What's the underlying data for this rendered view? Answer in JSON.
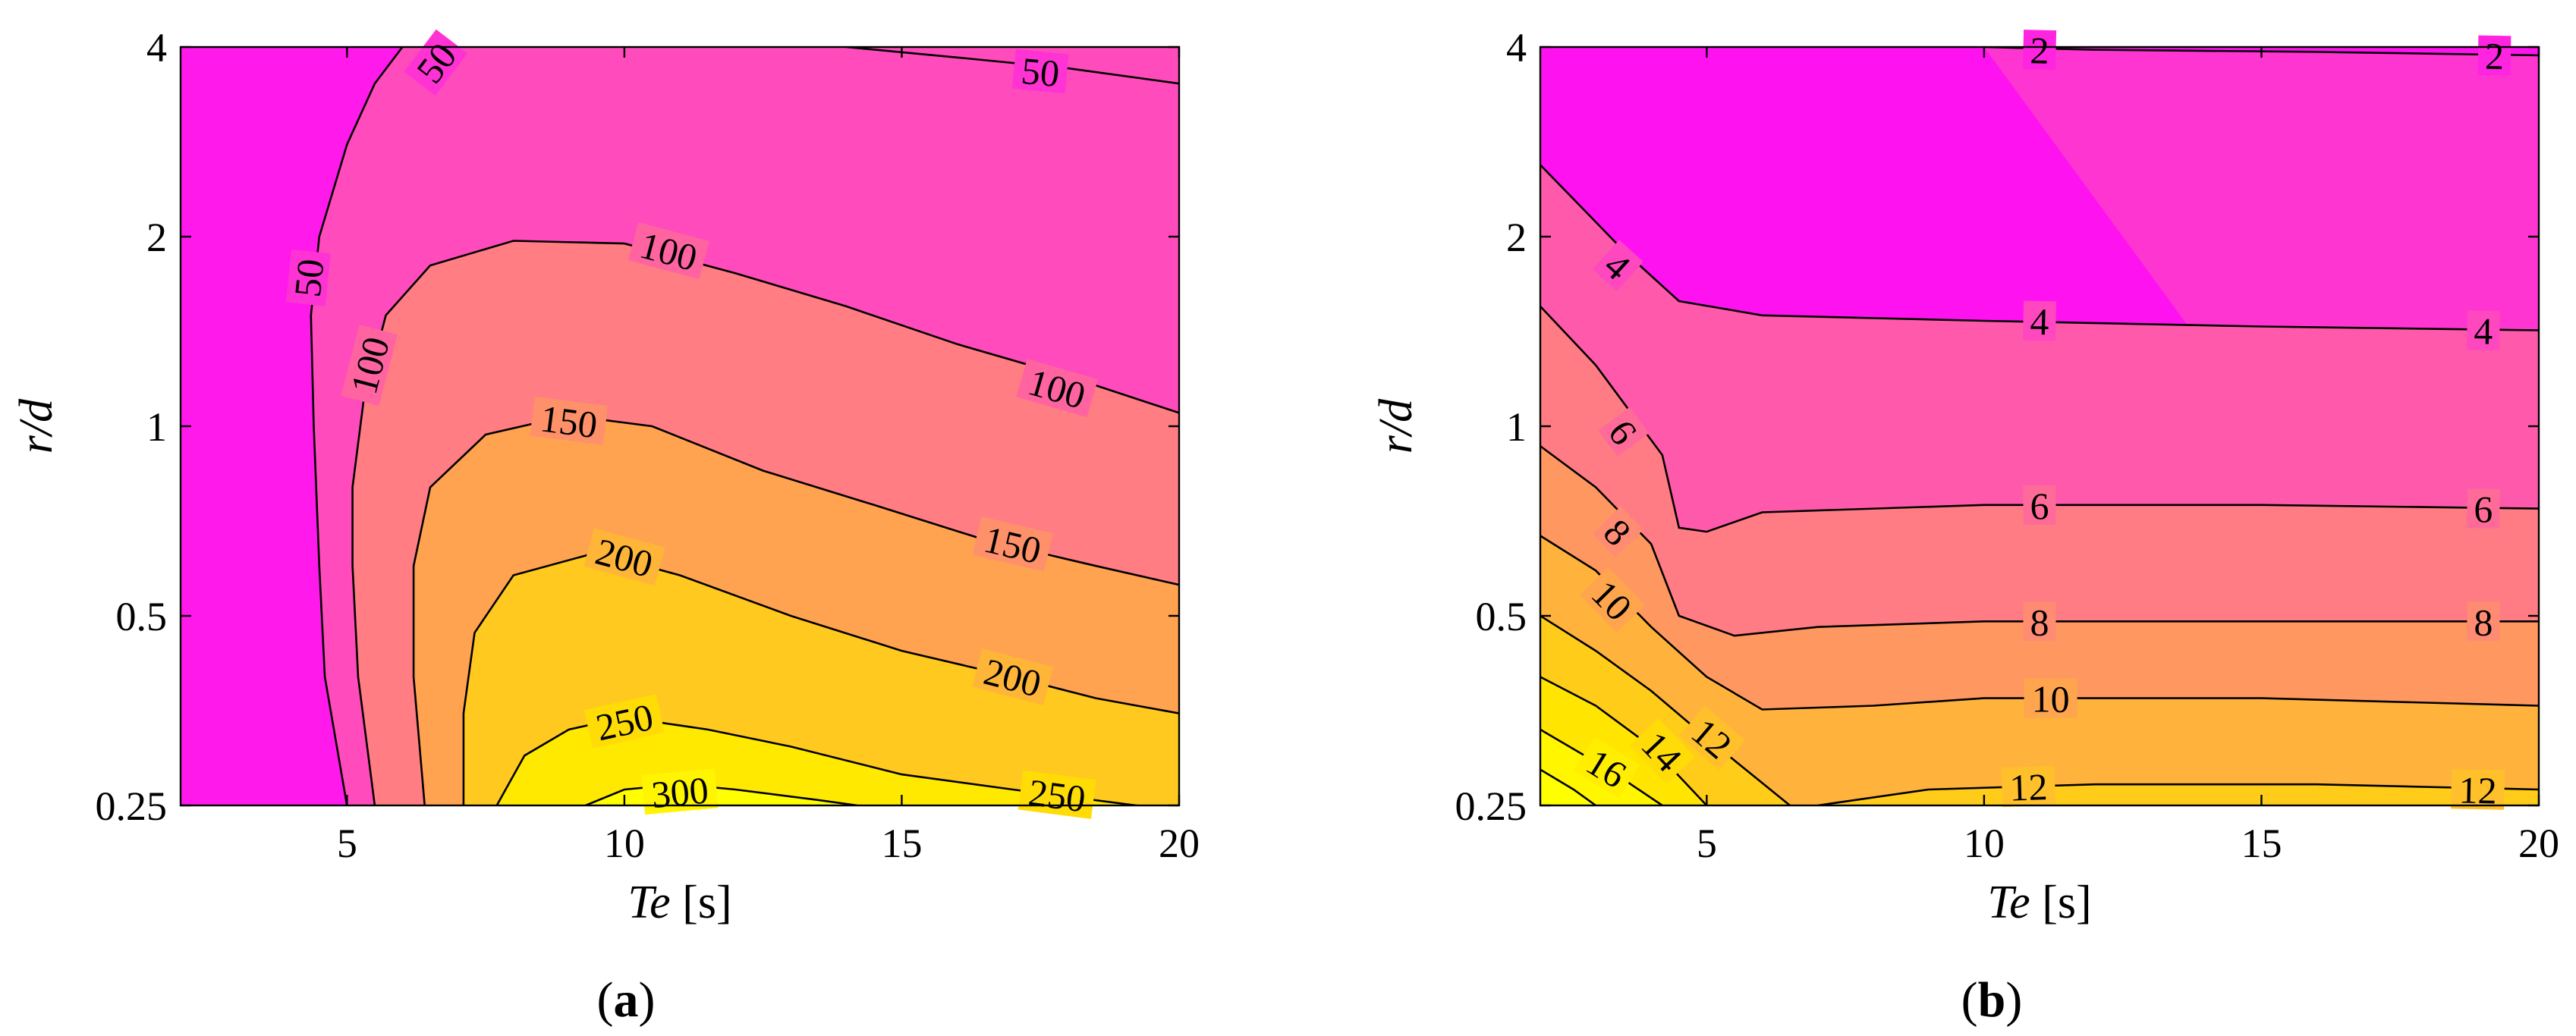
{
  "figure": {
    "panel_labels": [
      {
        "open": "(",
        "letter": "a",
        "close": ")"
      },
      {
        "open": "(",
        "letter": "b",
        "close": ")"
      }
    ]
  },
  "colors": {
    "colormap": [
      "#ff00ff",
      "#ff40c8",
      "#ff8080",
      "#ffb040",
      "#ffe000",
      "#ffff00"
    ],
    "contour_line": "#000000",
    "axis": "#000000"
  },
  "chart_data": [
    {
      "type": "heatmap",
      "subtype": "filled-contour",
      "title": "",
      "xlabel": {
        "italic": "Te",
        "unit": " [s]"
      },
      "ylabel": {
        "italic": "r/d",
        "unit": ""
      },
      "xlim": [
        2,
        20
      ],
      "ylim": [
        0.25,
        4
      ],
      "yscale": "log2",
      "xticks": [
        5,
        10,
        15,
        20
      ],
      "yticks": [
        0.25,
        0.5,
        1,
        2,
        4
      ],
      "ytick_labels": [
        "0.25",
        "0.5",
        "1",
        "2",
        "4"
      ],
      "grid": false,
      "value_range": [
        0,
        320
      ],
      "levels": [
        {
          "value": 50,
          "label": "50",
          "points": [
            [
              5.0,
              0.25
            ],
            [
              4.6,
              0.4
            ],
            [
              4.5,
              0.6
            ],
            [
              4.4,
              1.0
            ],
            [
              4.35,
              1.5
            ],
            [
              4.5,
              2.0
            ],
            [
              5.0,
              2.8
            ],
            [
              5.5,
              3.5
            ],
            [
              6.0,
              4.0
            ]
          ],
          "labels_at": [
            [
              4.3,
              1.72
            ],
            [
              6.6,
              3.78
            ]
          ]
        },
        {
          "value": 50,
          "label": "50",
          "points": [
            [
              14.0,
              4.0
            ],
            [
              16.0,
              3.85
            ],
            [
              18.0,
              3.7
            ],
            [
              20.0,
              3.5
            ]
          ],
          "labels_at": [
            [
              17.5,
              3.66
            ]
          ]
        },
        {
          "value": 100,
          "label": "100",
          "points": [
            [
              5.5,
              0.25
            ],
            [
              5.2,
              0.4
            ],
            [
              5.1,
              0.6
            ],
            [
              5.1,
              0.8
            ],
            [
              5.3,
              1.1
            ],
            [
              5.7,
              1.5
            ],
            [
              6.5,
              1.8
            ],
            [
              8.0,
              1.97
            ],
            [
              10.0,
              1.95
            ],
            [
              12.0,
              1.75
            ],
            [
              14.0,
              1.55
            ],
            [
              16.0,
              1.35
            ],
            [
              18.0,
              1.2
            ],
            [
              20.0,
              1.05
            ]
          ],
          "labels_at": [
            [
              5.4,
              1.25
            ],
            [
              10.8,
              1.9
            ],
            [
              17.8,
              1.15
            ]
          ]
        },
        {
          "value": 150,
          "label": "150",
          "points": [
            [
              6.4,
              0.25
            ],
            [
              6.2,
              0.4
            ],
            [
              6.2,
              0.6
            ],
            [
              6.5,
              0.8
            ],
            [
              7.5,
              0.97
            ],
            [
              9.0,
              1.04
            ],
            [
              10.5,
              1.0
            ],
            [
              12.5,
              0.85
            ],
            [
              14.5,
              0.75
            ],
            [
              16.5,
              0.66
            ],
            [
              18.5,
              0.6
            ],
            [
              20.0,
              0.56
            ]
          ],
          "labels_at": [
            [
              9.0,
              1.02
            ],
            [
              17.0,
              0.65
            ]
          ]
        },
        {
          "value": 200,
          "label": "200",
          "points": [
            [
              7.1,
              0.25
            ],
            [
              7.1,
              0.35
            ],
            [
              7.3,
              0.47
            ],
            [
              8.0,
              0.58
            ],
            [
              9.5,
              0.63
            ],
            [
              11.0,
              0.58
            ],
            [
              13.0,
              0.5
            ],
            [
              15.0,
              0.44
            ],
            [
              17.0,
              0.4
            ],
            [
              18.5,
              0.37
            ],
            [
              20.0,
              0.35
            ]
          ],
          "labels_at": [
            [
              10.0,
              0.62
            ],
            [
              17.0,
              0.4
            ]
          ]
        },
        {
          "value": 250,
          "label": "250",
          "points": [
            [
              7.7,
              0.25
            ],
            [
              8.2,
              0.3
            ],
            [
              9.0,
              0.33
            ],
            [
              10.0,
              0.345
            ],
            [
              11.5,
              0.33
            ],
            [
              13.0,
              0.31
            ],
            [
              15.0,
              0.28
            ],
            [
              17.0,
              0.265
            ],
            [
              20.0,
              0.245
            ]
          ],
          "labels_at": [
            [
              10.0,
              0.34
            ],
            [
              17.8,
              0.26
            ]
          ]
        },
        {
          "value": 300,
          "label": "300",
          "points": [
            [
              9.3,
              0.25
            ],
            [
              10.0,
              0.265
            ],
            [
              11.0,
              0.27
            ],
            [
              12.0,
              0.265
            ],
            [
              13.5,
              0.255
            ],
            [
              14.2,
              0.25
            ]
          ],
          "labels_at": [
            [
              11.0,
              0.263
            ]
          ]
        }
      ]
    },
    {
      "type": "heatmap",
      "subtype": "filled-contour",
      "title": "",
      "xlabel": {
        "italic": "Te",
        "unit": " [s]"
      },
      "ylabel": {
        "italic": "r/d",
        "unit": ""
      },
      "xlim": [
        2,
        20
      ],
      "ylim": [
        0.25,
        4
      ],
      "yscale": "log2",
      "xticks": [
        5,
        10,
        15,
        20
      ],
      "yticks": [
        0.25,
        0.5,
        1,
        2,
        4
      ],
      "ytick_labels": [
        "0.25",
        "0.5",
        "1",
        "2",
        "4"
      ],
      "grid": false,
      "value_range": [
        0,
        18
      ],
      "levels": [
        {
          "value": 2,
          "label": "2",
          "points": [
            [
              10.0,
              4.0
            ],
            [
              12.0,
              3.96
            ],
            [
              16.0,
              3.93
            ],
            [
              20.0,
              3.88
            ]
          ],
          "labels_at": [
            [
              11.0,
              3.96
            ],
            [
              19.2,
              3.88
            ]
          ]
        },
        {
          "value": 4,
          "label": "4",
          "points": [
            [
              2.0,
              2.6
            ],
            [
              2.8,
              2.2
            ],
            [
              3.5,
              1.9
            ],
            [
              4.5,
              1.58
            ],
            [
              6.0,
              1.5
            ],
            [
              10.0,
              1.47
            ],
            [
              15.0,
              1.44
            ],
            [
              20.0,
              1.42
            ]
          ],
          "labels_at": [
            [
              3.4,
              1.8
            ],
            [
              11.0,
              1.47
            ],
            [
              19.0,
              1.42
            ]
          ]
        },
        {
          "value": 6,
          "label": "6",
          "points": [
            [
              2.0,
              1.55
            ],
            [
              3.0,
              1.25
            ],
            [
              4.2,
              0.9
            ],
            [
              4.5,
              0.69
            ],
            [
              5.0,
              0.68
            ],
            [
              6.0,
              0.73
            ],
            [
              10.0,
              0.75
            ],
            [
              15.0,
              0.75
            ],
            [
              20.0,
              0.74
            ]
          ],
          "labels_at": [
            [
              3.5,
              0.98
            ],
            [
              11.0,
              0.75
            ],
            [
              19.0,
              0.74
            ]
          ]
        },
        {
          "value": 8,
          "label": "8",
          "points": [
            [
              2.0,
              0.93
            ],
            [
              3.0,
              0.8
            ],
            [
              4.0,
              0.65
            ],
            [
              4.5,
              0.5
            ],
            [
              5.5,
              0.465
            ],
            [
              7.0,
              0.48
            ],
            [
              10.0,
              0.49
            ],
            [
              15.0,
              0.49
            ],
            [
              20.0,
              0.49
            ]
          ],
          "labels_at": [
            [
              3.4,
              0.68
            ],
            [
              11.0,
              0.49
            ],
            [
              19.0,
              0.49
            ]
          ]
        },
        {
          "value": 10,
          "label": "10",
          "points": [
            [
              2.0,
              0.67
            ],
            [
              3.0,
              0.59
            ],
            [
              4.0,
              0.48
            ],
            [
              5.0,
              0.4
            ],
            [
              6.0,
              0.355
            ],
            [
              8.0,
              0.36
            ],
            [
              10.0,
              0.37
            ],
            [
              15.0,
              0.37
            ],
            [
              20.0,
              0.36
            ]
          ],
          "labels_at": [
            [
              3.3,
              0.53
            ],
            [
              11.2,
              0.37
            ]
          ]
        },
        {
          "value": 12,
          "label": "12",
          "points": [
            [
              2.0,
              0.5
            ],
            [
              3.0,
              0.44
            ],
            [
              4.0,
              0.38
            ],
            [
              5.0,
              0.32
            ],
            [
              6.5,
              0.25
            ]
          ],
          "labels_at": [
            [
              5.1,
              0.32
            ]
          ]
        },
        {
          "value": 12,
          "label": "12",
          "points": [
            [
              7.0,
              0.25
            ],
            [
              9.0,
              0.265
            ],
            [
              12.0,
              0.27
            ],
            [
              16.0,
              0.27
            ],
            [
              20.0,
              0.265
            ]
          ],
          "labels_at": [
            [
              10.8,
              0.268
            ],
            [
              18.9,
              0.265
            ]
          ]
        },
        {
          "value": 14,
          "label": "14",
          "points": [
            [
              2.0,
              0.4
            ],
            [
              3.0,
              0.36
            ],
            [
              4.0,
              0.31
            ],
            [
              5.0,
              0.25
            ]
          ],
          "labels_at": [
            [
              4.2,
              0.305
            ]
          ]
        },
        {
          "value": 16,
          "label": "16",
          "points": [
            [
              2.0,
              0.33
            ],
            [
              2.8,
              0.3
            ],
            [
              3.5,
              0.275
            ],
            [
              4.2,
              0.25
            ]
          ],
          "labels_at": [
            [
              3.2,
              0.287
            ]
          ]
        },
        {
          "value": 18,
          "label": "",
          "points": [
            [
              2.0,
              0.285
            ],
            [
              2.6,
              0.265
            ],
            [
              3.0,
              0.25
            ]
          ],
          "labels_at": []
        }
      ]
    }
  ]
}
